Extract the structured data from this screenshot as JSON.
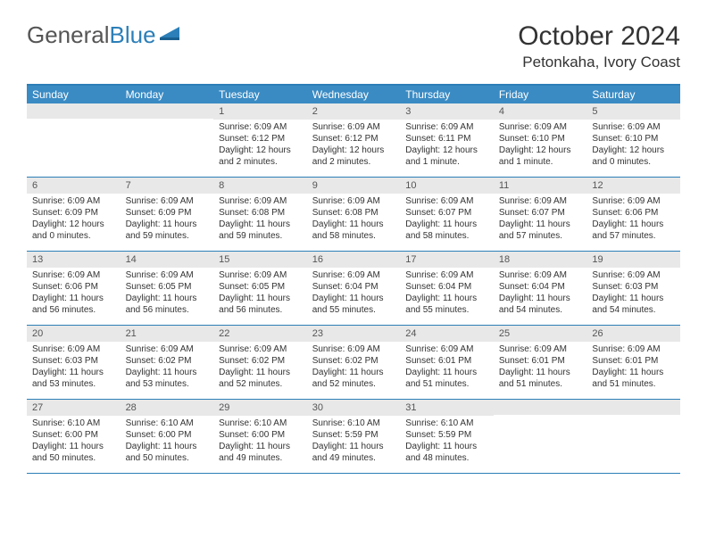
{
  "logo": {
    "word1": "General",
    "word2": "Blue"
  },
  "title": "October 2024",
  "location": "Petonkaha, Ivory Coast",
  "dayNames": [
    "Sunday",
    "Monday",
    "Tuesday",
    "Wednesday",
    "Thursday",
    "Friday",
    "Saturday"
  ],
  "colors": {
    "header_bg": "#3a8bc4",
    "border": "#2c7fb8",
    "daynum_bg": "#e8e8e8",
    "text": "#333333"
  },
  "weeks": [
    [
      {
        "n": "",
        "sunrise": "",
        "sunset": "",
        "daylight": ""
      },
      {
        "n": "",
        "sunrise": "",
        "sunset": "",
        "daylight": ""
      },
      {
        "n": "1",
        "sunrise": "Sunrise: 6:09 AM",
        "sunset": "Sunset: 6:12 PM",
        "daylight": "Daylight: 12 hours and 2 minutes."
      },
      {
        "n": "2",
        "sunrise": "Sunrise: 6:09 AM",
        "sunset": "Sunset: 6:12 PM",
        "daylight": "Daylight: 12 hours and 2 minutes."
      },
      {
        "n": "3",
        "sunrise": "Sunrise: 6:09 AM",
        "sunset": "Sunset: 6:11 PM",
        "daylight": "Daylight: 12 hours and 1 minute."
      },
      {
        "n": "4",
        "sunrise": "Sunrise: 6:09 AM",
        "sunset": "Sunset: 6:10 PM",
        "daylight": "Daylight: 12 hours and 1 minute."
      },
      {
        "n": "5",
        "sunrise": "Sunrise: 6:09 AM",
        "sunset": "Sunset: 6:10 PM",
        "daylight": "Daylight: 12 hours and 0 minutes."
      }
    ],
    [
      {
        "n": "6",
        "sunrise": "Sunrise: 6:09 AM",
        "sunset": "Sunset: 6:09 PM",
        "daylight": "Daylight: 12 hours and 0 minutes."
      },
      {
        "n": "7",
        "sunrise": "Sunrise: 6:09 AM",
        "sunset": "Sunset: 6:09 PM",
        "daylight": "Daylight: 11 hours and 59 minutes."
      },
      {
        "n": "8",
        "sunrise": "Sunrise: 6:09 AM",
        "sunset": "Sunset: 6:08 PM",
        "daylight": "Daylight: 11 hours and 59 minutes."
      },
      {
        "n": "9",
        "sunrise": "Sunrise: 6:09 AM",
        "sunset": "Sunset: 6:08 PM",
        "daylight": "Daylight: 11 hours and 58 minutes."
      },
      {
        "n": "10",
        "sunrise": "Sunrise: 6:09 AM",
        "sunset": "Sunset: 6:07 PM",
        "daylight": "Daylight: 11 hours and 58 minutes."
      },
      {
        "n": "11",
        "sunrise": "Sunrise: 6:09 AM",
        "sunset": "Sunset: 6:07 PM",
        "daylight": "Daylight: 11 hours and 57 minutes."
      },
      {
        "n": "12",
        "sunrise": "Sunrise: 6:09 AM",
        "sunset": "Sunset: 6:06 PM",
        "daylight": "Daylight: 11 hours and 57 minutes."
      }
    ],
    [
      {
        "n": "13",
        "sunrise": "Sunrise: 6:09 AM",
        "sunset": "Sunset: 6:06 PM",
        "daylight": "Daylight: 11 hours and 56 minutes."
      },
      {
        "n": "14",
        "sunrise": "Sunrise: 6:09 AM",
        "sunset": "Sunset: 6:05 PM",
        "daylight": "Daylight: 11 hours and 56 minutes."
      },
      {
        "n": "15",
        "sunrise": "Sunrise: 6:09 AM",
        "sunset": "Sunset: 6:05 PM",
        "daylight": "Daylight: 11 hours and 56 minutes."
      },
      {
        "n": "16",
        "sunrise": "Sunrise: 6:09 AM",
        "sunset": "Sunset: 6:04 PM",
        "daylight": "Daylight: 11 hours and 55 minutes."
      },
      {
        "n": "17",
        "sunrise": "Sunrise: 6:09 AM",
        "sunset": "Sunset: 6:04 PM",
        "daylight": "Daylight: 11 hours and 55 minutes."
      },
      {
        "n": "18",
        "sunrise": "Sunrise: 6:09 AM",
        "sunset": "Sunset: 6:04 PM",
        "daylight": "Daylight: 11 hours and 54 minutes."
      },
      {
        "n": "19",
        "sunrise": "Sunrise: 6:09 AM",
        "sunset": "Sunset: 6:03 PM",
        "daylight": "Daylight: 11 hours and 54 minutes."
      }
    ],
    [
      {
        "n": "20",
        "sunrise": "Sunrise: 6:09 AM",
        "sunset": "Sunset: 6:03 PM",
        "daylight": "Daylight: 11 hours and 53 minutes."
      },
      {
        "n": "21",
        "sunrise": "Sunrise: 6:09 AM",
        "sunset": "Sunset: 6:02 PM",
        "daylight": "Daylight: 11 hours and 53 minutes."
      },
      {
        "n": "22",
        "sunrise": "Sunrise: 6:09 AM",
        "sunset": "Sunset: 6:02 PM",
        "daylight": "Daylight: 11 hours and 52 minutes."
      },
      {
        "n": "23",
        "sunrise": "Sunrise: 6:09 AM",
        "sunset": "Sunset: 6:02 PM",
        "daylight": "Daylight: 11 hours and 52 minutes."
      },
      {
        "n": "24",
        "sunrise": "Sunrise: 6:09 AM",
        "sunset": "Sunset: 6:01 PM",
        "daylight": "Daylight: 11 hours and 51 minutes."
      },
      {
        "n": "25",
        "sunrise": "Sunrise: 6:09 AM",
        "sunset": "Sunset: 6:01 PM",
        "daylight": "Daylight: 11 hours and 51 minutes."
      },
      {
        "n": "26",
        "sunrise": "Sunrise: 6:09 AM",
        "sunset": "Sunset: 6:01 PM",
        "daylight": "Daylight: 11 hours and 51 minutes."
      }
    ],
    [
      {
        "n": "27",
        "sunrise": "Sunrise: 6:10 AM",
        "sunset": "Sunset: 6:00 PM",
        "daylight": "Daylight: 11 hours and 50 minutes."
      },
      {
        "n": "28",
        "sunrise": "Sunrise: 6:10 AM",
        "sunset": "Sunset: 6:00 PM",
        "daylight": "Daylight: 11 hours and 50 minutes."
      },
      {
        "n": "29",
        "sunrise": "Sunrise: 6:10 AM",
        "sunset": "Sunset: 6:00 PM",
        "daylight": "Daylight: 11 hours and 49 minutes."
      },
      {
        "n": "30",
        "sunrise": "Sunrise: 6:10 AM",
        "sunset": "Sunset: 5:59 PM",
        "daylight": "Daylight: 11 hours and 49 minutes."
      },
      {
        "n": "31",
        "sunrise": "Sunrise: 6:10 AM",
        "sunset": "Sunset: 5:59 PM",
        "daylight": "Daylight: 11 hours and 48 minutes."
      },
      {
        "n": "",
        "sunrise": "",
        "sunset": "",
        "daylight": ""
      },
      {
        "n": "",
        "sunrise": "",
        "sunset": "",
        "daylight": ""
      }
    ]
  ]
}
